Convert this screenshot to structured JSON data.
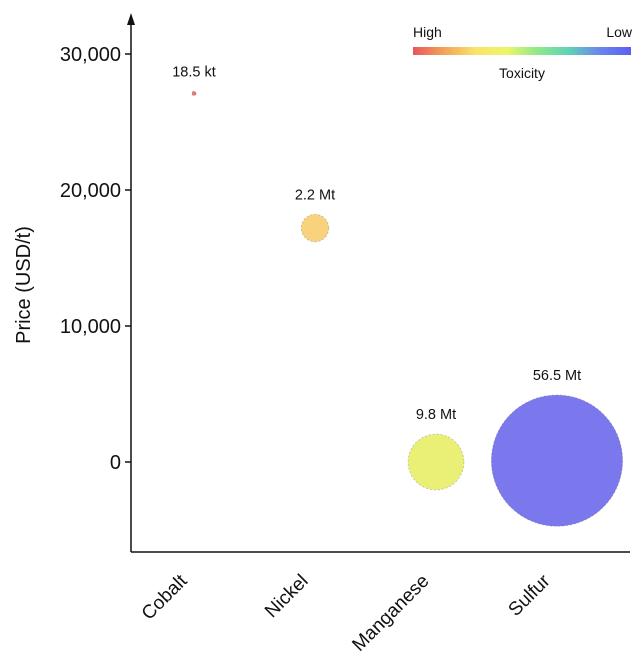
{
  "chart_data": {
    "type": "scatter",
    "variant": "bubble",
    "ylabel": "Price (USD/t)",
    "xlabel": "",
    "categories": [
      "Cobalt",
      "Nickel",
      "Manganese",
      "Sulfur"
    ],
    "ylim": [
      -6500,
      32000
    ],
    "yticks": [
      0,
      10000,
      20000,
      30000
    ],
    "ytick_labels": [
      "0",
      "10,000",
      "20,000",
      "30,000"
    ],
    "grid": false,
    "points": [
      {
        "category": "Cobalt",
        "y": 27100,
        "size_label": "18.5 kt",
        "size_kt": 18.5,
        "color": "#e8787a"
      },
      {
        "category": "Nickel",
        "y": 17200,
        "size_label": "2.2 Mt",
        "size_kt": 2200,
        "color": "#f9d27e"
      },
      {
        "category": "Manganese",
        "y": 0,
        "size_label": "9.8 Mt",
        "size_kt": 9800,
        "color": "#eaf075"
      },
      {
        "category": "Sulfur",
        "y": 100,
        "size_label": "56.5 Mt",
        "size_kt": 56500,
        "color": "#7b78ee"
      }
    ],
    "legend": {
      "title": "Toxicity",
      "high_label": "High",
      "low_label": "Low",
      "placement": "top-right",
      "gradient_colors": [
        "#e8555b",
        "#f3a35a",
        "#fae36a",
        "#eef56c",
        "#8fe88a",
        "#5fd3b8",
        "#6a86ee",
        "#5b5fee"
      ]
    }
  }
}
